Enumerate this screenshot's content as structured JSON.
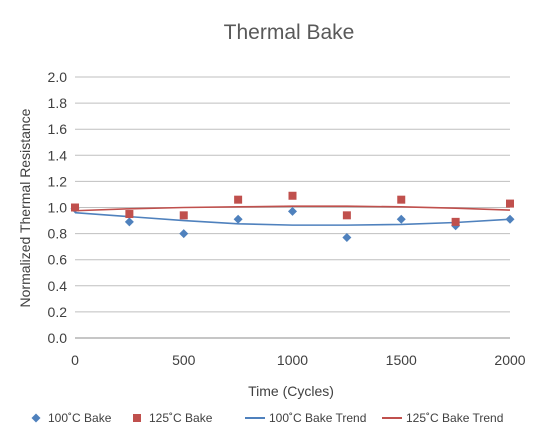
{
  "chart_data": {
    "type": "scatter",
    "title": "Thermal Bake",
    "xlabel": "Time (Cycles)",
    "ylabel": "Normalized Thermal Resistance",
    "xlim": [
      0,
      2000
    ],
    "ylim": [
      0,
      2.0
    ],
    "xticks": [
      "0",
      "500",
      "1000",
      "1500",
      "2000"
    ],
    "yticks": [
      "0.0",
      "0.2",
      "0.4",
      "0.6",
      "0.8",
      "1.0",
      "1.2",
      "1.4",
      "1.6",
      "1.8",
      "2.0"
    ],
    "grid": "horizontal",
    "legend_position": "bottom",
    "series": [
      {
        "name": "100˚C Bake",
        "kind": "points",
        "marker": "diamond",
        "color": "#4F81BD",
        "x": [
          0,
          250,
          500,
          750,
          1000,
          1250,
          1500,
          1750,
          2000
        ],
        "y": [
          0.99,
          0.89,
          0.8,
          0.91,
          0.97,
          0.77,
          0.91,
          0.86,
          0.91
        ]
      },
      {
        "name": "125˚C Bake",
        "kind": "points",
        "marker": "square",
        "color": "#C0504D",
        "x": [
          0,
          250,
          500,
          750,
          1000,
          1250,
          1500,
          1750,
          2000
        ],
        "y": [
          1.0,
          0.95,
          0.94,
          1.06,
          1.09,
          0.94,
          1.06,
          0.89,
          1.03
        ]
      },
      {
        "name": "100˚C Bake Trend",
        "kind": "line",
        "color": "#4F81BD",
        "x": [
          0,
          250,
          500,
          750,
          1000,
          1250,
          1500,
          1750,
          2000
        ],
        "y": [
          0.96,
          0.93,
          0.9,
          0.875,
          0.865,
          0.865,
          0.87,
          0.885,
          0.91
        ]
      },
      {
        "name": "125˚C Bake Trend",
        "kind": "line",
        "color": "#C0504D",
        "x": [
          0,
          250,
          500,
          750,
          1000,
          1250,
          1500,
          1750,
          2000
        ],
        "y": [
          0.975,
          0.99,
          1.0,
          1.005,
          1.01,
          1.01,
          1.005,
          0.995,
          0.98
        ]
      }
    ]
  }
}
